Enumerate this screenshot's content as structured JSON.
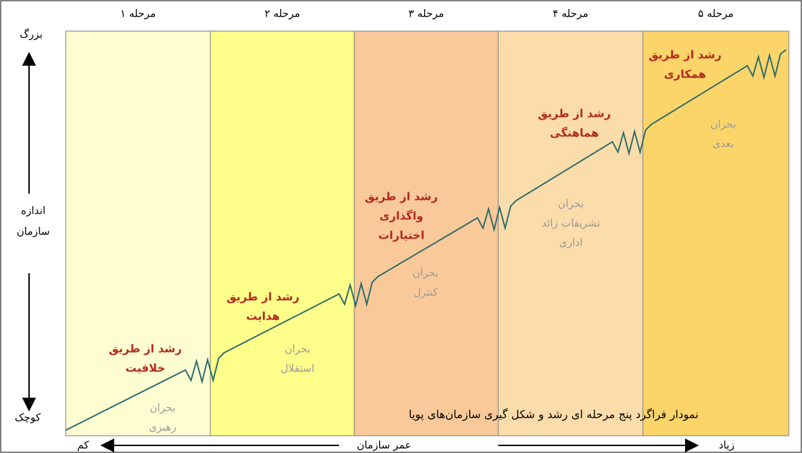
{
  "axis": {
    "y_top": "بزرگ",
    "y_label": [
      "اندازه",
      "سازمان"
    ],
    "y_bottom": "کوچک",
    "x_left": "کم",
    "x_label": "عمر سازمان",
    "x_right": "زیاد"
  },
  "stages": [
    {
      "label": "مرحله ۱",
      "growth": [
        "رشد از طریق",
        "خلاقیت"
      ],
      "crisis": [
        "بحران",
        "رهبری"
      ]
    },
    {
      "label": "مرحله ۲",
      "growth": [
        "رشد از طریق",
        "هدایت"
      ],
      "crisis": [
        "بحران",
        "استقلال"
      ]
    },
    {
      "label": "مرحله ۳",
      "growth": [
        "رشد از طریق",
        "واگذاری",
        "اختیارات"
      ],
      "crisis": [
        "بحران",
        "کنترل"
      ]
    },
    {
      "label": "مرحله ۴",
      "growth": [
        "رشد از طریق",
        "هماهنگی"
      ],
      "crisis": [
        "بحران",
        "تشریفات زائد",
        "اداری"
      ]
    },
    {
      "label": "مرحله ۵",
      "growth": [
        "رشد از طریق",
        "همکاری"
      ],
      "crisis": [
        "بحران",
        "بعدی"
      ]
    }
  ],
  "caption": "نمودار فراگرد پنج مرحله ای رشد و شکل گیری سازمان‌های پویا"
}
